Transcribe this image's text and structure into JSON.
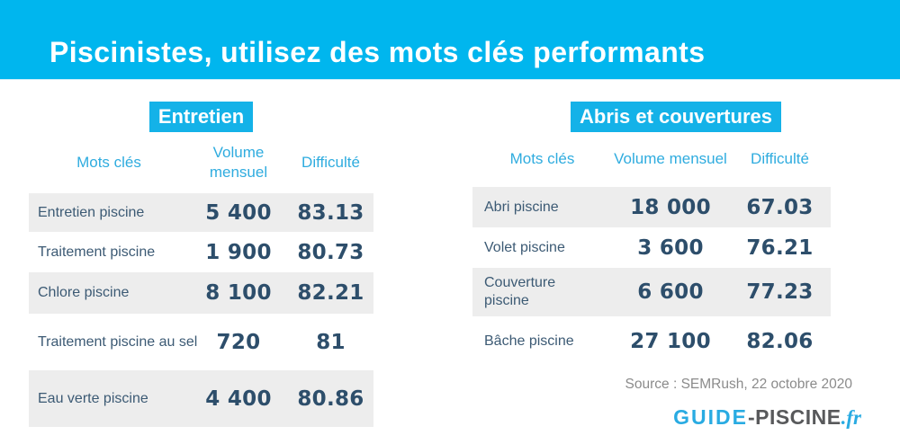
{
  "banner": {
    "title": "Piscinistes, utilisez des mots clés performants"
  },
  "tables": [
    {
      "title": "Entretien",
      "columns": {
        "keyword": "Mots clés",
        "volume": "Volume mensuel",
        "difficulty": "Difficulté"
      },
      "rows": [
        {
          "keyword": "Entretien piscine",
          "volume": "5 400",
          "difficulty": "83.13"
        },
        {
          "keyword": "Traitement piscine",
          "volume": "1 900",
          "difficulty": "80.73"
        },
        {
          "keyword": "Chlore piscine",
          "volume": "8 100",
          "difficulty": "82.21"
        },
        {
          "keyword": "Traitement piscine au sel",
          "volume": "720",
          "difficulty": "81"
        },
        {
          "keyword": "Eau verte piscine",
          "volume": "4 400",
          "difficulty": "80.86"
        }
      ]
    },
    {
      "title": "Abris et couvertures",
      "columns": {
        "keyword": "Mots clés",
        "volume": "Volume mensuel",
        "difficulty": "Difficulté"
      },
      "rows": [
        {
          "keyword": "Abri piscine",
          "volume": "18 000",
          "difficulty": "67.03"
        },
        {
          "keyword": "Volet piscine",
          "volume": "3 600",
          "difficulty": "76.21"
        },
        {
          "keyword": "Couverture piscine",
          "volume": "6 600",
          "difficulty": "77.23"
        },
        {
          "keyword": "Bâche piscine",
          "volume": "27 100",
          "difficulty": "82.06"
        }
      ]
    }
  ],
  "source": "Source : SEMRush, 22 octobre 2020",
  "logo": {
    "guide": "GUIDE",
    "piscine": "-PISCINE",
    "fr": ".fr"
  },
  "colors": {
    "banner_cyan": "#00b6ee",
    "highlight_cyan": "#14b2e8",
    "header_text_cyan": "#2facdf",
    "navy_text": "#2d4e6b",
    "row_gray": "#ededed",
    "source_gray": "#8b8b8b",
    "logo_gray": "#58595b"
  },
  "chart_data": [
    {
      "type": "table",
      "title": "Entretien",
      "columns": [
        "Mots clés",
        "Volume mensuel",
        "Difficulté"
      ],
      "rows": [
        [
          "Entretien piscine",
          5400,
          83.13
        ],
        [
          "Traitement piscine",
          1900,
          80.73
        ],
        [
          "Chlore piscine",
          8100,
          82.21
        ],
        [
          "Traitement piscine au sel",
          720,
          81
        ],
        [
          "Eau verte piscine",
          4400,
          80.86
        ]
      ]
    },
    {
      "type": "table",
      "title": "Abris et couvertures",
      "columns": [
        "Mots clés",
        "Volume mensuel",
        "Difficulté"
      ],
      "rows": [
        [
          "Abri piscine",
          18000,
          67.03
        ],
        [
          "Volet piscine",
          3600,
          76.21
        ],
        [
          "Couverture piscine",
          6600,
          77.23
        ],
        [
          "Bâche piscine",
          27100,
          82.06
        ]
      ]
    }
  ]
}
